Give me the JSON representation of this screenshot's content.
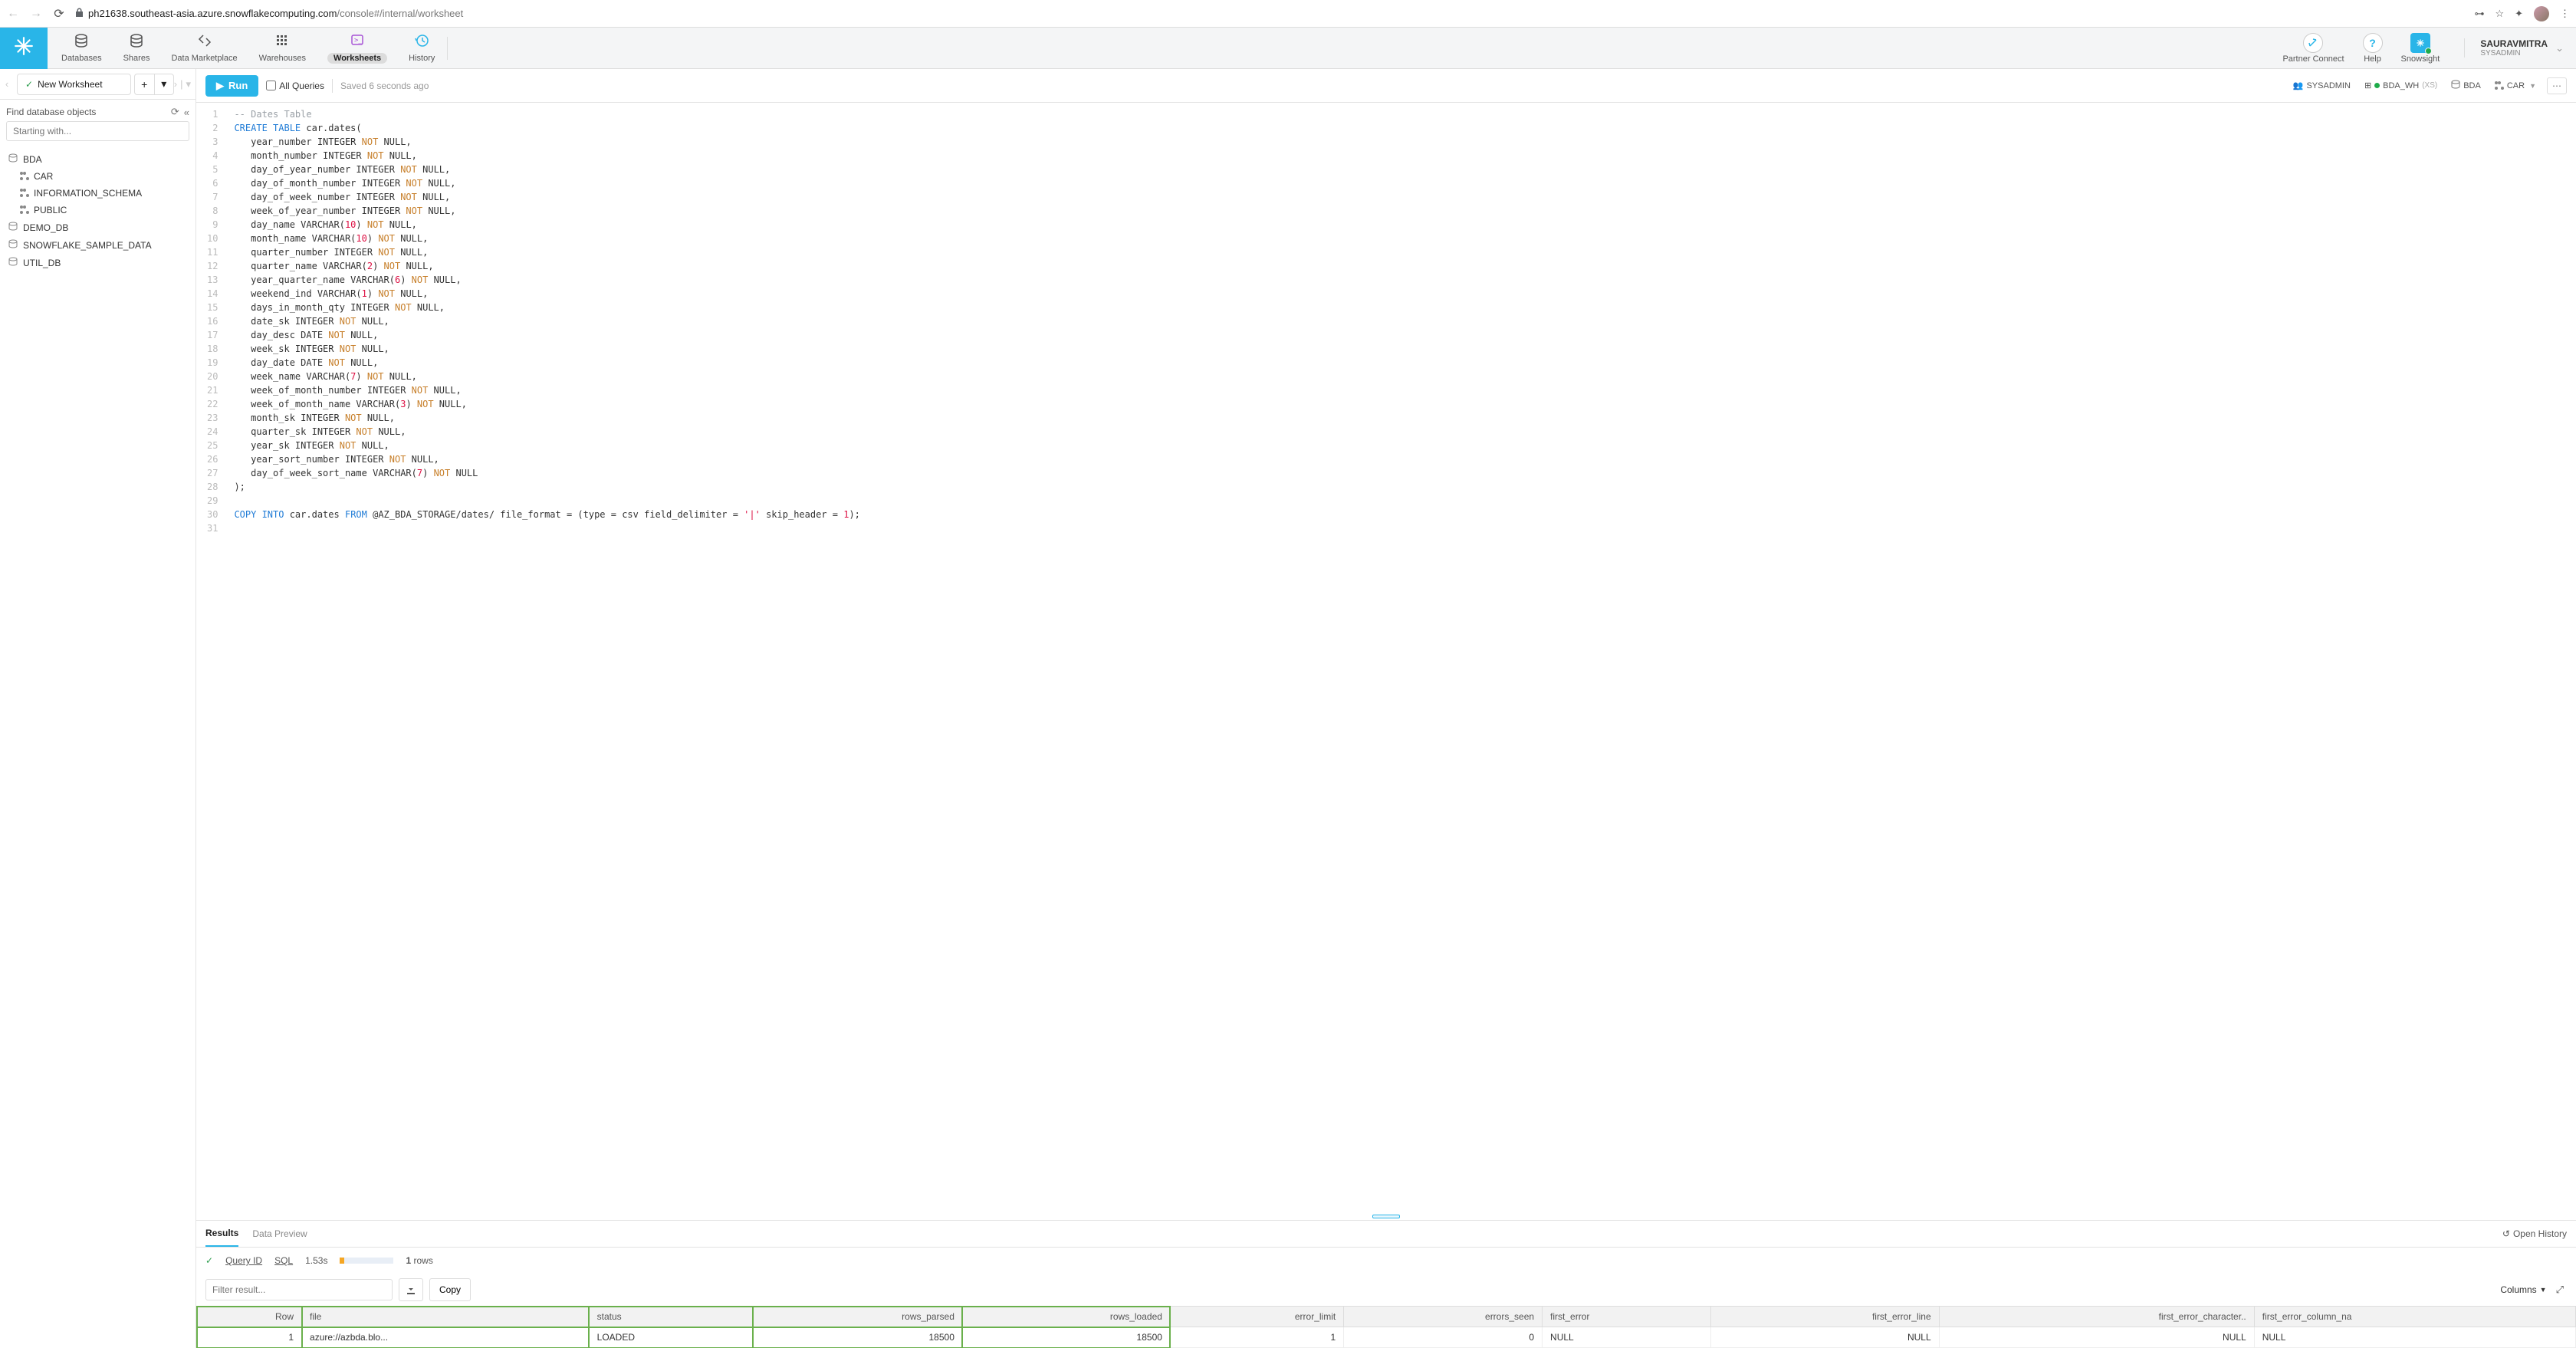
{
  "browser": {
    "url_domain": "ph21638.southeast-asia.azure.snowflakecomputing.com",
    "url_path": "/console#/internal/worksheet"
  },
  "top_nav": {
    "items": [
      {
        "label": "Databases",
        "icon": "db"
      },
      {
        "label": "Shares",
        "icon": "db"
      },
      {
        "label": "Data Marketplace",
        "icon": "market"
      },
      {
        "label": "Warehouses",
        "icon": "wh"
      },
      {
        "label": "Worksheets",
        "icon": "ws",
        "active": true
      },
      {
        "label": "History",
        "icon": "hist"
      }
    ],
    "right": [
      {
        "label": "Partner Connect",
        "icon": "link"
      },
      {
        "label": "Help",
        "icon": "?"
      },
      {
        "label": "Snowsight",
        "icon": "snow"
      }
    ],
    "user": {
      "name": "SAURAVMITRA",
      "role": "SYSADMIN"
    }
  },
  "worksheet_tab": {
    "name": "New Worksheet"
  },
  "sidebar": {
    "find_label": "Find database objects",
    "search_placeholder": "Starting with...",
    "tree": [
      {
        "label": "BDA",
        "type": "db",
        "children": [
          {
            "label": "CAR",
            "type": "schema"
          },
          {
            "label": "INFORMATION_SCHEMA",
            "type": "schema"
          },
          {
            "label": "PUBLIC",
            "type": "schema"
          }
        ]
      },
      {
        "label": "DEMO_DB",
        "type": "db"
      },
      {
        "label": "SNOWFLAKE_SAMPLE_DATA",
        "type": "db"
      },
      {
        "label": "UTIL_DB",
        "type": "db"
      }
    ]
  },
  "toolbar": {
    "run_label": "Run",
    "all_queries_label": "All Queries",
    "saved_label": "Saved 6 seconds ago",
    "context": {
      "role": "SYSADMIN",
      "warehouse": "BDA_WH",
      "wh_size": "(XS)",
      "database": "BDA",
      "schema": "CAR"
    }
  },
  "editor": {
    "lines": [
      {
        "n": 1,
        "seg": [
          [
            "comment",
            "-- Dates Table"
          ]
        ]
      },
      {
        "n": 2,
        "seg": [
          [
            "kw",
            "CREATE TABLE"
          ],
          [
            "",
            " car.dates("
          ]
        ]
      },
      {
        "n": 3,
        "seg": [
          [
            "",
            "   year_number INTEGER "
          ],
          [
            "kw2",
            "NOT"
          ],
          [
            "",
            " NULL,"
          ]
        ]
      },
      {
        "n": 4,
        "seg": [
          [
            "",
            "   month_number INTEGER "
          ],
          [
            "kw2",
            "NOT"
          ],
          [
            "",
            " NULL,"
          ]
        ]
      },
      {
        "n": 5,
        "seg": [
          [
            "",
            "   day_of_year_number INTEGER "
          ],
          [
            "kw2",
            "NOT"
          ],
          [
            "",
            " NULL,"
          ]
        ]
      },
      {
        "n": 6,
        "seg": [
          [
            "",
            "   day_of_month_number INTEGER "
          ],
          [
            "kw2",
            "NOT"
          ],
          [
            "",
            " NULL,"
          ]
        ]
      },
      {
        "n": 7,
        "seg": [
          [
            "",
            "   day_of_week_number INTEGER "
          ],
          [
            "kw2",
            "NOT"
          ],
          [
            "",
            " NULL,"
          ]
        ]
      },
      {
        "n": 8,
        "seg": [
          [
            "",
            "   week_of_year_number INTEGER "
          ],
          [
            "kw2",
            "NOT"
          ],
          [
            "",
            " NULL,"
          ]
        ]
      },
      {
        "n": 9,
        "seg": [
          [
            "",
            "   day_name VARCHAR("
          ],
          [
            "num",
            "10"
          ],
          [
            "",
            ") "
          ],
          [
            "kw2",
            "NOT"
          ],
          [
            "",
            " NULL,"
          ]
        ]
      },
      {
        "n": 10,
        "seg": [
          [
            "",
            "   month_name VARCHAR("
          ],
          [
            "num",
            "10"
          ],
          [
            "",
            ") "
          ],
          [
            "kw2",
            "NOT"
          ],
          [
            "",
            " NULL,"
          ]
        ]
      },
      {
        "n": 11,
        "seg": [
          [
            "",
            "   quarter_number INTEGER "
          ],
          [
            "kw2",
            "NOT"
          ],
          [
            "",
            " NULL,"
          ]
        ]
      },
      {
        "n": 12,
        "seg": [
          [
            "",
            "   quarter_name VARCHAR("
          ],
          [
            "num",
            "2"
          ],
          [
            "",
            ") "
          ],
          [
            "kw2",
            "NOT"
          ],
          [
            "",
            " NULL,"
          ]
        ]
      },
      {
        "n": 13,
        "seg": [
          [
            "",
            "   year_quarter_name VARCHAR("
          ],
          [
            "num",
            "6"
          ],
          [
            "",
            ") "
          ],
          [
            "kw2",
            "NOT"
          ],
          [
            "",
            " NULL,"
          ]
        ]
      },
      {
        "n": 14,
        "seg": [
          [
            "",
            "   weekend_ind VARCHAR("
          ],
          [
            "num",
            "1"
          ],
          [
            "",
            ") "
          ],
          [
            "kw2",
            "NOT"
          ],
          [
            "",
            " NULL,"
          ]
        ]
      },
      {
        "n": 15,
        "seg": [
          [
            "",
            "   days_in_month_qty INTEGER "
          ],
          [
            "kw2",
            "NOT"
          ],
          [
            "",
            " NULL,"
          ]
        ]
      },
      {
        "n": 16,
        "seg": [
          [
            "",
            "   date_sk INTEGER "
          ],
          [
            "kw2",
            "NOT"
          ],
          [
            "",
            " NULL,"
          ]
        ]
      },
      {
        "n": 17,
        "seg": [
          [
            "",
            "   day_desc DATE "
          ],
          [
            "kw2",
            "NOT"
          ],
          [
            "",
            " NULL,"
          ]
        ]
      },
      {
        "n": 18,
        "seg": [
          [
            "",
            "   week_sk INTEGER "
          ],
          [
            "kw2",
            "NOT"
          ],
          [
            "",
            " NULL,"
          ]
        ]
      },
      {
        "n": 19,
        "seg": [
          [
            "",
            "   day_date DATE "
          ],
          [
            "kw2",
            "NOT"
          ],
          [
            "",
            " NULL,"
          ]
        ]
      },
      {
        "n": 20,
        "seg": [
          [
            "",
            "   week_name VARCHAR("
          ],
          [
            "num",
            "7"
          ],
          [
            "",
            ") "
          ],
          [
            "kw2",
            "NOT"
          ],
          [
            "",
            " NULL,"
          ]
        ]
      },
      {
        "n": 21,
        "seg": [
          [
            "",
            "   week_of_month_number INTEGER "
          ],
          [
            "kw2",
            "NOT"
          ],
          [
            "",
            " NULL,"
          ]
        ]
      },
      {
        "n": 22,
        "seg": [
          [
            "",
            "   week_of_month_name VARCHAR("
          ],
          [
            "num",
            "3"
          ],
          [
            "",
            ") "
          ],
          [
            "kw2",
            "NOT"
          ],
          [
            "",
            " NULL,"
          ]
        ]
      },
      {
        "n": 23,
        "seg": [
          [
            "",
            "   month_sk INTEGER "
          ],
          [
            "kw2",
            "NOT"
          ],
          [
            "",
            " NULL,"
          ]
        ]
      },
      {
        "n": 24,
        "seg": [
          [
            "",
            "   quarter_sk INTEGER "
          ],
          [
            "kw2",
            "NOT"
          ],
          [
            "",
            " NULL,"
          ]
        ]
      },
      {
        "n": 25,
        "seg": [
          [
            "",
            "   year_sk INTEGER "
          ],
          [
            "kw2",
            "NOT"
          ],
          [
            "",
            " NULL,"
          ]
        ]
      },
      {
        "n": 26,
        "seg": [
          [
            "",
            "   year_sort_number INTEGER "
          ],
          [
            "kw2",
            "NOT"
          ],
          [
            "",
            " NULL,"
          ]
        ]
      },
      {
        "n": 27,
        "seg": [
          [
            "",
            "   day_of_week_sort_name VARCHAR("
          ],
          [
            "num",
            "7"
          ],
          [
            "",
            ") "
          ],
          [
            "kw2",
            "NOT"
          ],
          [
            "",
            " NULL"
          ]
        ]
      },
      {
        "n": 28,
        "seg": [
          [
            "",
            ");"
          ]
        ]
      },
      {
        "n": 29,
        "seg": [
          [
            "",
            ""
          ]
        ]
      },
      {
        "n": 30,
        "seg": [
          [
            "kw",
            "COPY INTO"
          ],
          [
            "",
            " car.dates "
          ],
          [
            "kw",
            "FROM"
          ],
          [
            "",
            " @AZ_BDA_STORAGE/dates/ file_format = (type = csv field_delimiter = "
          ],
          [
            "str",
            "'|'"
          ],
          [
            "",
            " skip_header = "
          ],
          [
            "num",
            "1"
          ],
          [
            "",
            ");"
          ]
        ]
      },
      {
        "n": 31,
        "seg": [
          [
            "",
            ""
          ]
        ]
      }
    ]
  },
  "results": {
    "tabs": {
      "results": "Results",
      "preview": "Data Preview",
      "open_history": "Open History"
    },
    "status": {
      "query_id_label": "Query ID",
      "sql_label": "SQL",
      "duration": "1.53s",
      "row_count": "1",
      "rows_label": "rows"
    },
    "filter_placeholder": "Filter result...",
    "copy_label": "Copy",
    "columns_label": "Columns",
    "table": {
      "columns": [
        "Row",
        "file",
        "status",
        "rows_parsed",
        "rows_loaded",
        "error_limit",
        "errors_seen",
        "first_error",
        "first_error_line",
        "first_error_character..",
        "first_error_column_na"
      ],
      "numeric_cols": [
        0,
        3,
        4,
        5,
        6,
        8,
        9
      ],
      "highlight_cols": [
        0,
        1,
        2,
        3,
        4
      ],
      "rows": [
        [
          "1",
          "azure://azbda.blo...",
          "LOADED",
          "18500",
          "18500",
          "1",
          "0",
          "NULL",
          "NULL",
          "NULL",
          "NULL"
        ]
      ]
    }
  }
}
